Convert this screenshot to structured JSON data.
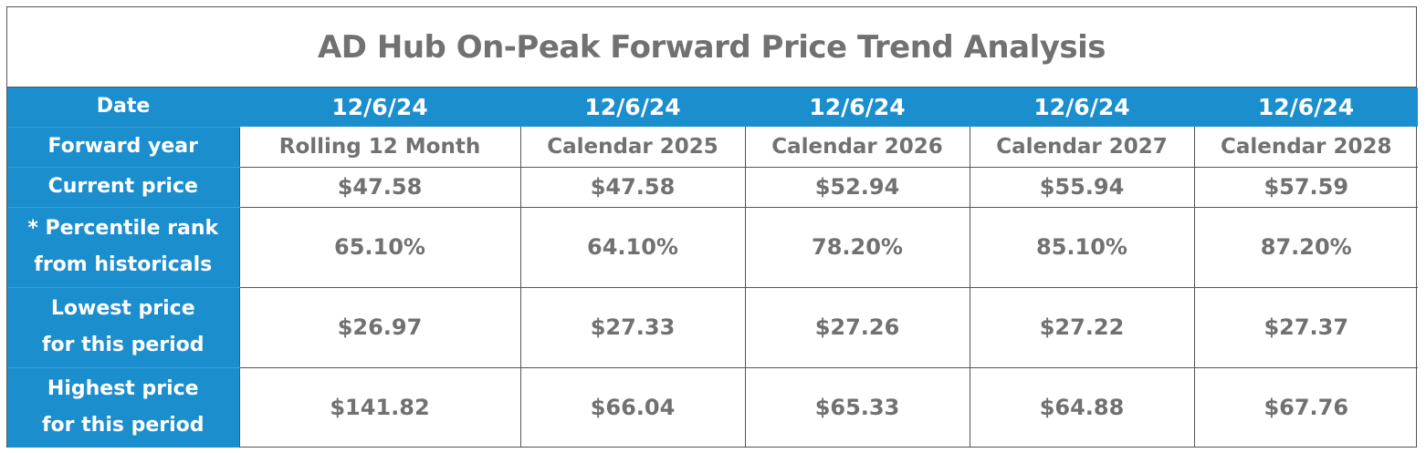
{
  "title": "AD Hub On-Peak Forward Price Trend Analysis",
  "colors": {
    "header_blue": "#1b8ecd",
    "value_gray": "#717171",
    "border": "#555555"
  },
  "chart_data": {
    "type": "table",
    "title": "AD Hub On-Peak Forward Price Trend Analysis",
    "row_labels": {
      "date": "Date",
      "forward_year": "Forward year",
      "current_price": "Current price",
      "percentile_line1": "* Percentile rank",
      "percentile_line2": "from historicals",
      "lowest_line1": "Lowest price",
      "lowest_line2": "for this period",
      "highest_line1": "Highest price",
      "highest_line2": "for this period"
    },
    "columns": [
      {
        "date": "12/6/24",
        "forward_year": "Rolling 12 Month",
        "current_price": "$47.58",
        "percentile_rank": "65.10%",
        "lowest_price": "$26.97",
        "highest_price": "$141.82"
      },
      {
        "date": "12/6/24",
        "forward_year": "Calendar 2025",
        "current_price": "$47.58",
        "percentile_rank": "64.10%",
        "lowest_price": "$27.33",
        "highest_price": "$66.04"
      },
      {
        "date": "12/6/24",
        "forward_year": "Calendar 2026",
        "current_price": "$52.94",
        "percentile_rank": "78.20%",
        "lowest_price": "$27.26",
        "highest_price": "$65.33"
      },
      {
        "date": "12/6/24",
        "forward_year": "Calendar 2027",
        "current_price": "$55.94",
        "percentile_rank": "85.10%",
        "lowest_price": "$27.22",
        "highest_price": "$64.88"
      },
      {
        "date": "12/6/24",
        "forward_year": "Calendar 2028",
        "current_price": "$57.59",
        "percentile_rank": "87.20%",
        "lowest_price": "$27.37",
        "highest_price": "$67.76"
      }
    ]
  }
}
